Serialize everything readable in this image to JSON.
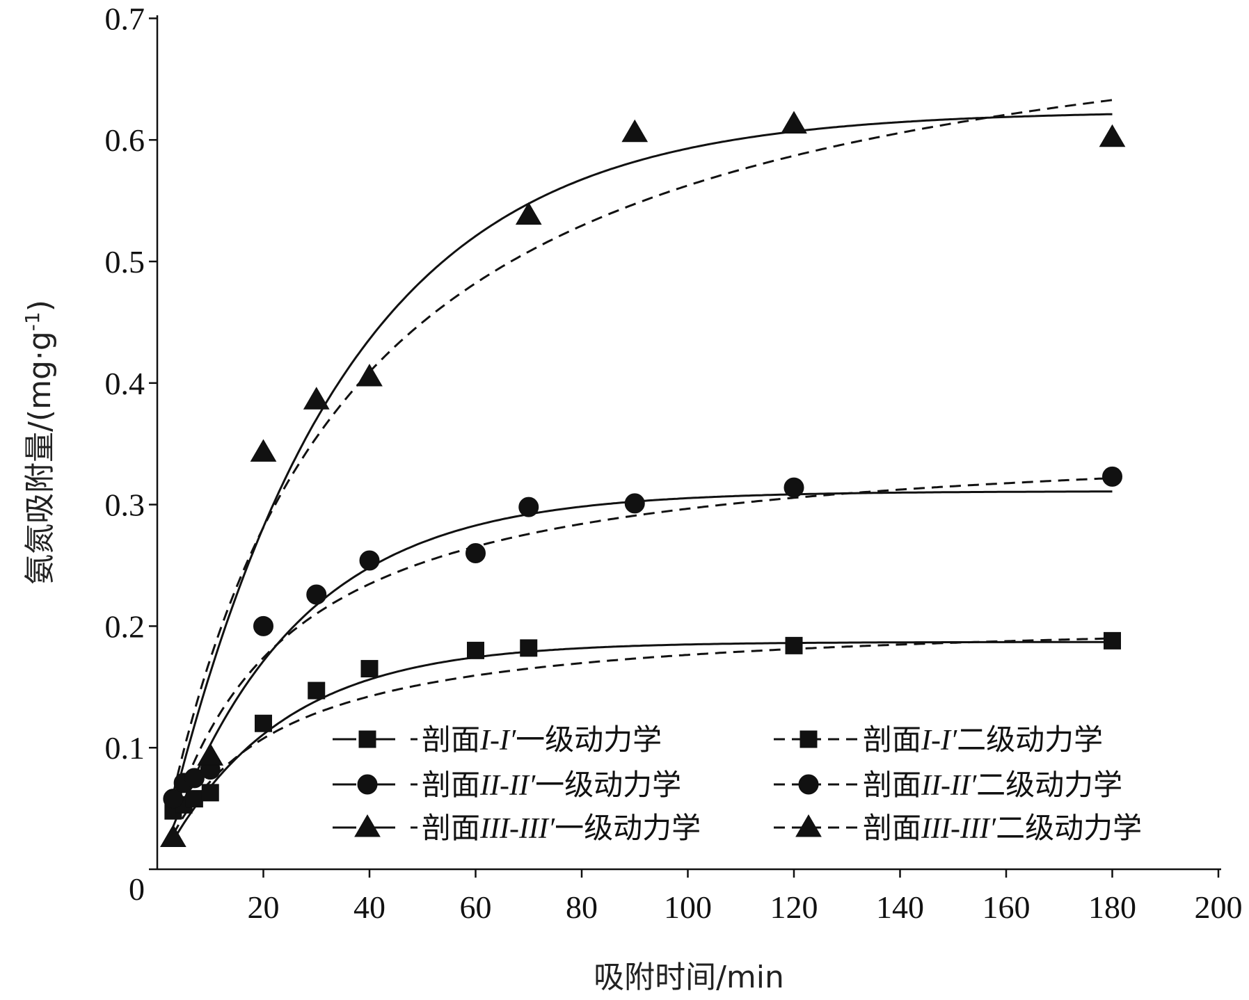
{
  "chart_data": {
    "type": "scatter",
    "title": "",
    "xlabel": "吸附时间/min",
    "ylabel": "氨氮吸附量/(mg·g",
    "ylabel_sup": "-1",
    "ylabel_tail": ")",
    "xlim": [
      0,
      200
    ],
    "ylim": [
      0,
      0.7
    ],
    "x_ticks": [
      20,
      40,
      60,
      80,
      100,
      120,
      140,
      160,
      180,
      200
    ],
    "x_tick_labels": [
      "20",
      "40",
      "60",
      "80",
      "100",
      "120",
      "140",
      "160",
      "180",
      "200"
    ],
    "y_ticks": [
      0,
      0.1,
      0.2,
      0.3,
      0.4,
      0.5,
      0.6,
      0.7
    ],
    "y_tick_labels": [
      "0",
      "0.1",
      "0.2",
      "0.3",
      "0.4",
      "0.5",
      "0.6",
      "0.7"
    ],
    "grid": false,
    "legend_position": "bottom-right",
    "series": [
      {
        "name": "剖面I-I′",
        "marker": "square",
        "x": [
          3,
          5,
          7,
          10,
          20,
          30,
          40,
          60,
          70,
          120,
          180
        ],
        "y": [
          0.048,
          0.053,
          0.058,
          0.063,
          0.12,
          0.147,
          0.165,
          0.18,
          0.182,
          0.184,
          0.188
        ],
        "first_order": {
          "qe": 0.187,
          "k": 0.045
        },
        "second_order": {
          "qe": 0.21,
          "k": 0.25
        }
      },
      {
        "name": "剖面II-II′",
        "marker": "circle",
        "x": [
          3,
          5,
          7,
          10,
          20,
          30,
          40,
          60,
          70,
          90,
          120,
          180
        ],
        "y": [
          0.058,
          0.071,
          0.075,
          0.082,
          0.2,
          0.226,
          0.254,
          0.26,
          0.298,
          0.301,
          0.314,
          0.323
        ],
        "first_order": {
          "qe": 0.311,
          "k": 0.04
        },
        "second_order": {
          "qe": 0.36,
          "k": 0.13
        }
      },
      {
        "name": "剖面III-III′",
        "marker": "triangle",
        "x": [
          3,
          10,
          20,
          30,
          40,
          70,
          90,
          120,
          180
        ],
        "y": [
          0.026,
          0.093,
          0.343,
          0.386,
          0.405,
          0.538,
          0.606,
          0.613,
          0.602
        ],
        "first_order": {
          "qe": 0.624,
          "k": 0.03
        },
        "second_order": {
          "qe": 0.75,
          "k": 0.04
        }
      }
    ],
    "legend": [
      {
        "label": "剖面",
        "italic": "I-I′",
        "suffix": "一级动力学",
        "series": 0,
        "fit": "first_order"
      },
      {
        "label": "剖面",
        "italic": "I-I′",
        "suffix": "二级动力学",
        "series": 0,
        "fit": "second_order"
      },
      {
        "label": "剖面",
        "italic": "II-II′",
        "suffix": "一级动力学",
        "series": 1,
        "fit": "first_order"
      },
      {
        "label": "剖面",
        "italic": "II-II′",
        "suffix": "二级动力学",
        "series": 1,
        "fit": "second_order"
      },
      {
        "label": "剖面",
        "italic": "III-III′",
        "suffix": "一级动力学",
        "series": 2,
        "fit": "first_order"
      },
      {
        "label": "剖面",
        "italic": "III-III′",
        "suffix": "二级动力学",
        "series": 2,
        "fit": "second_order"
      }
    ]
  }
}
